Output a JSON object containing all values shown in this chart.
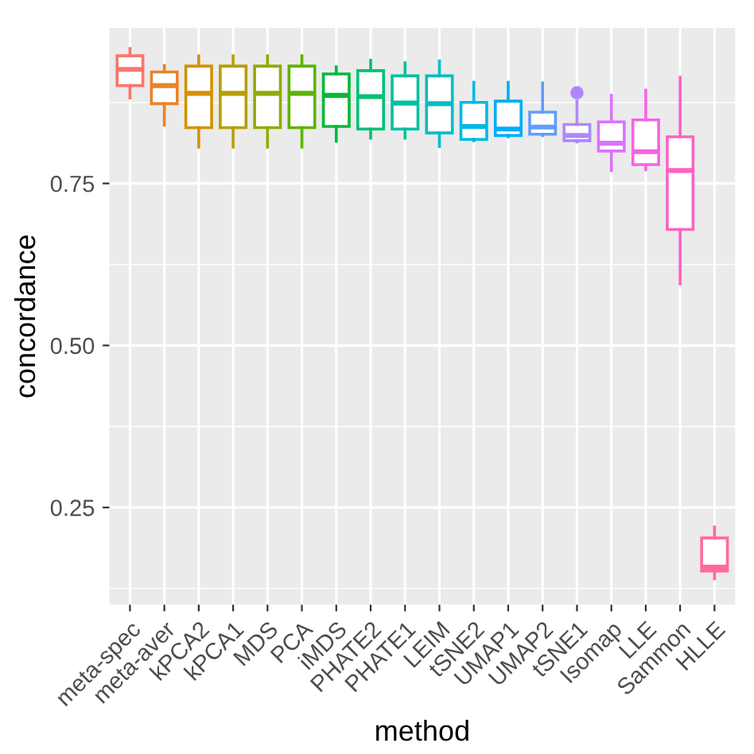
{
  "chart_data": {
    "type": "box",
    "xlabel": "method",
    "ylabel": "concordance",
    "categories": [
      "meta-spec",
      "meta-aver",
      "kPCA2",
      "kPCA1",
      "MDS",
      "PCA",
      "iMDS",
      "PHATE2",
      "PHATE1",
      "LEIM",
      "tSNE2",
      "UMAP1",
      "UMAP2",
      "tSNE1",
      "Isomap",
      "LLE",
      "Sammon",
      "HLLE"
    ],
    "colors": [
      "#F8766D",
      "#E8842A",
      "#D39200",
      "#B79F00",
      "#93AA00",
      "#5EB300",
      "#00BA38",
      "#00BF74",
      "#00C19F",
      "#00BFC4",
      "#00B9E3",
      "#00ADFA",
      "#619CFF",
      "#AE87FF",
      "#DB72FB",
      "#F564E3",
      "#FF61C3",
      "#FF699C"
    ],
    "boxes": [
      {
        "low": 0.882,
        "q1": 0.901,
        "median": 0.926,
        "q3": 0.947,
        "high": 0.958
      },
      {
        "low": 0.84,
        "q1": 0.873,
        "median": 0.901,
        "q3": 0.922,
        "high": 0.932
      },
      {
        "low": 0.806,
        "q1": 0.836,
        "median": 0.889,
        "q3": 0.931,
        "high": 0.947
      },
      {
        "low": 0.806,
        "q1": 0.836,
        "median": 0.889,
        "q3": 0.931,
        "high": 0.947
      },
      {
        "low": 0.806,
        "q1": 0.836,
        "median": 0.889,
        "q3": 0.931,
        "high": 0.947
      },
      {
        "low": 0.806,
        "q1": 0.836,
        "median": 0.889,
        "q3": 0.931,
        "high": 0.947
      },
      {
        "low": 0.815,
        "q1": 0.838,
        "median": 0.886,
        "q3": 0.919,
        "high": 0.93
      },
      {
        "low": 0.82,
        "q1": 0.834,
        "median": 0.884,
        "q3": 0.924,
        "high": 0.94
      },
      {
        "low": 0.82,
        "q1": 0.834,
        "median": 0.874,
        "q3": 0.916,
        "high": 0.936
      },
      {
        "low": 0.807,
        "q1": 0.828,
        "median": 0.873,
        "q3": 0.916,
        "high": 0.939
      },
      {
        "low": 0.816,
        "q1": 0.818,
        "median": 0.838,
        "q3": 0.875,
        "high": 0.906
      },
      {
        "low": 0.822,
        "q1": 0.824,
        "median": 0.834,
        "q3": 0.877,
        "high": 0.906
      },
      {
        "low": 0.824,
        "q1": 0.826,
        "median": 0.837,
        "q3": 0.86,
        "high": 0.905
      },
      {
        "low": 0.814,
        "q1": 0.816,
        "median": 0.824,
        "q3": 0.841,
        "high": 0.877,
        "outliers": [
          0.89
        ]
      },
      {
        "low": 0.77,
        "q1": 0.8,
        "median": 0.812,
        "q3": 0.845,
        "high": 0.886
      },
      {
        "low": 0.771,
        "q1": 0.779,
        "median": 0.799,
        "q3": 0.848,
        "high": 0.894
      },
      {
        "low": 0.595,
        "q1": 0.679,
        "median": 0.77,
        "q3": 0.822,
        "high": 0.914
      },
      {
        "low": 0.14,
        "q1": 0.152,
        "median": 0.158,
        "q3": 0.203,
        "high": 0.22
      }
    ],
    "ylim": [
      0.1,
      0.99
    ],
    "yticks": [
      {
        "value": 0.25,
        "label": "0.25"
      },
      {
        "value": 0.5,
        "label": "0.50"
      },
      {
        "value": 0.75,
        "label": "0.75"
      }
    ],
    "grid": true,
    "legend": false
  }
}
